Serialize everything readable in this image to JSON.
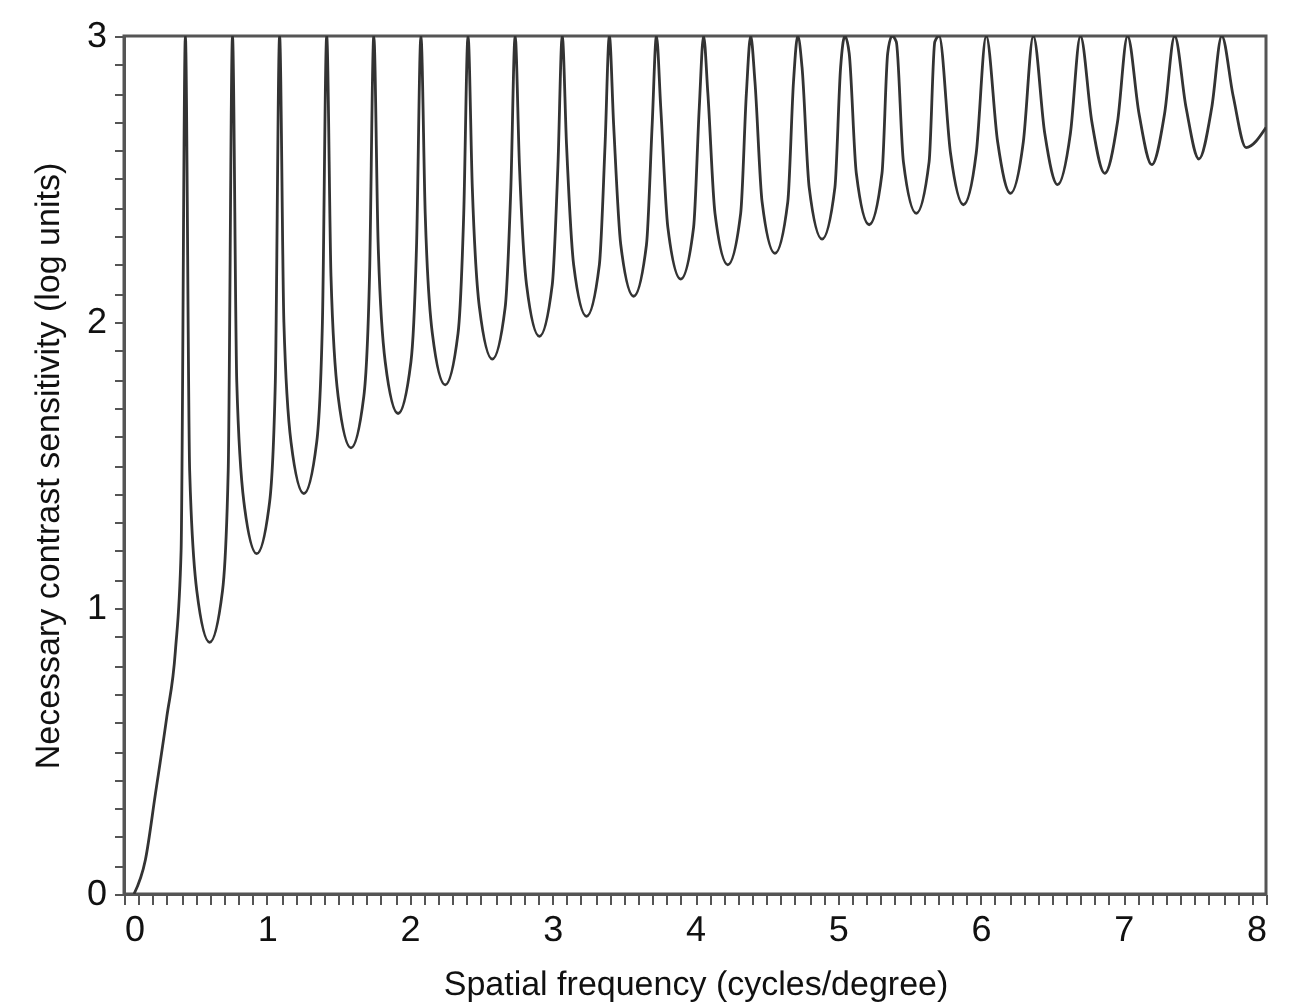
{
  "chart_data": {
    "type": "line",
    "xlabel": "Spatial frequency (cycles/degree)",
    "ylabel": "Necessary contrast sensitivity (log units)",
    "xlim": [
      0,
      8
    ],
    "ylim": [
      0,
      3
    ],
    "xticks": [
      0,
      {
        "value": 0.1,
        "label": null
      },
      {
        "value": 0.2,
        "label": null
      },
      {
        "value": 0.3,
        "label": null
      },
      {
        "value": 0.4,
        "label": null
      },
      {
        "value": 0.5,
        "label": null
      },
      {
        "value": 0.6,
        "label": null
      },
      {
        "value": 0.7,
        "label": null
      },
      {
        "value": 0.8,
        "label": null
      },
      {
        "value": 0.9,
        "label": null
      },
      1,
      {
        "value": 1.1,
        "label": null
      },
      {
        "value": 1.2,
        "label": null
      },
      {
        "value": 1.3,
        "label": null
      },
      {
        "value": 1.4,
        "label": null
      },
      {
        "value": 1.5,
        "label": null
      },
      {
        "value": 1.6,
        "label": null
      },
      {
        "value": 1.7,
        "label": null
      },
      {
        "value": 1.8,
        "label": null
      },
      {
        "value": 1.9,
        "label": null
      },
      2,
      {
        "value": 2.1,
        "label": null
      },
      {
        "value": 2.2,
        "label": null
      },
      {
        "value": 2.3,
        "label": null
      },
      {
        "value": 2.4,
        "label": null
      },
      {
        "value": 2.5,
        "label": null
      },
      {
        "value": 2.6,
        "label": null
      },
      {
        "value": 2.7,
        "label": null
      },
      {
        "value": 2.8,
        "label": null
      },
      {
        "value": 2.9,
        "label": null
      },
      3,
      {
        "value": 3.1,
        "label": null
      },
      {
        "value": 3.2,
        "label": null
      },
      {
        "value": 3.3,
        "label": null
      },
      {
        "value": 3.4,
        "label": null
      },
      {
        "value": 3.5,
        "label": null
      },
      {
        "value": 3.6,
        "label": null
      },
      {
        "value": 3.7,
        "label": null
      },
      {
        "value": 3.8,
        "label": null
      },
      {
        "value": 3.9,
        "label": null
      },
      4,
      {
        "value": 4.1,
        "label": null
      },
      {
        "value": 4.2,
        "label": null
      },
      {
        "value": 4.3,
        "label": null
      },
      {
        "value": 4.4,
        "label": null
      },
      {
        "value": 4.5,
        "label": null
      },
      {
        "value": 4.6,
        "label": null
      },
      {
        "value": 4.7,
        "label": null
      },
      {
        "value": 4.8,
        "label": null
      },
      {
        "value": 4.9,
        "label": null
      },
      5,
      {
        "value": 5.1,
        "label": null
      },
      {
        "value": 5.2,
        "label": null
      },
      {
        "value": 5.3,
        "label": null
      },
      {
        "value": 5.4,
        "label": null
      },
      {
        "value": 5.5,
        "label": null
      },
      {
        "value": 5.6,
        "label": null
      },
      {
        "value": 5.7,
        "label": null
      },
      {
        "value": 5.8,
        "label": null
      },
      {
        "value": 5.9,
        "label": null
      },
      6,
      {
        "value": 6.1,
        "label": null
      },
      {
        "value": 6.2,
        "label": null
      },
      {
        "value": 6.3,
        "label": null
      },
      {
        "value": 6.4,
        "label": null
      },
      {
        "value": 6.5,
        "label": null
      },
      {
        "value": 6.6,
        "label": null
      },
      {
        "value": 6.7,
        "label": null
      },
      {
        "value": 6.8,
        "label": null
      },
      {
        "value": 6.9,
        "label": null
      },
      7,
      {
        "value": 7.1,
        "label": null
      },
      {
        "value": 7.2,
        "label": null
      },
      {
        "value": 7.3,
        "label": null
      },
      {
        "value": 7.4,
        "label": null
      },
      {
        "value": 7.5,
        "label": null
      },
      {
        "value": 7.6,
        "label": null
      },
      {
        "value": 7.7,
        "label": null
      },
      {
        "value": 7.8,
        "label": null
      },
      {
        "value": 7.9,
        "label": null
      },
      8
    ],
    "yticks": [
      0,
      {
        "value": 0.1,
        "label": null
      },
      {
        "value": 0.2,
        "label": null
      },
      {
        "value": 0.3,
        "label": null
      },
      {
        "value": 0.4,
        "label": null
      },
      {
        "value": 0.5,
        "label": null
      },
      {
        "value": 0.6,
        "label": null
      },
      {
        "value": 0.7,
        "label": null
      },
      {
        "value": 0.8,
        "label": null
      },
      {
        "value": 0.9,
        "label": null
      },
      1,
      {
        "value": 1.1,
        "label": null
      },
      {
        "value": 1.2,
        "label": null
      },
      {
        "value": 1.3,
        "label": null
      },
      {
        "value": 1.4,
        "label": null
      },
      {
        "value": 1.5,
        "label": null
      },
      {
        "value": 1.6,
        "label": null
      },
      {
        "value": 1.7,
        "label": null
      },
      {
        "value": 1.8,
        "label": null
      },
      {
        "value": 1.9,
        "label": null
      },
      2,
      {
        "value": 2.1,
        "label": null
      },
      {
        "value": 2.2,
        "label": null
      },
      {
        "value": 2.3,
        "label": null
      },
      {
        "value": 2.4,
        "label": null
      },
      {
        "value": 2.5,
        "label": null
      },
      {
        "value": 2.6,
        "label": null
      },
      {
        "value": 2.7,
        "label": null
      },
      {
        "value": 2.8,
        "label": null
      },
      {
        "value": 2.9,
        "label": null
      },
      3
    ],
    "series": [
      {
        "color": "#333333",
        "x": [
          0.07,
          0.15,
          0.22,
          0.3,
          0.36,
          0.4,
          0.43,
          0.46,
          0.51,
          0.6,
          0.69,
          0.73,
          0.76,
          0.79,
          0.84,
          0.93,
          1.02,
          1.06,
          1.09,
          1.12,
          1.17,
          1.26,
          1.35,
          1.39,
          1.42,
          1.45,
          1.5,
          1.59,
          1.68,
          1.72,
          1.75,
          1.78,
          1.83,
          1.92,
          2.01,
          2.05,
          2.08,
          2.11,
          2.16,
          2.25,
          2.34,
          2.38,
          2.41,
          2.44,
          2.49,
          2.58,
          2.67,
          2.71,
          2.74,
          2.77,
          2.82,
          2.91,
          3.0,
          3.04,
          3.07,
          3.1,
          3.15,
          3.24,
          3.33,
          3.37,
          3.4,
          3.43,
          3.48,
          3.57,
          3.66,
          3.7,
          3.73,
          3.76,
          3.81,
          3.9,
          3.99,
          4.03,
          4.06,
          4.09,
          4.14,
          4.23,
          4.32,
          4.36,
          4.39,
          4.42,
          4.47,
          4.56,
          4.65,
          4.69,
          4.72,
          4.75,
          4.8,
          4.89,
          4.98,
          5.02,
          5.05,
          5.08,
          5.13,
          5.22,
          5.31,
          5.35,
          5.38,
          5.41,
          5.46,
          5.55,
          5.64,
          5.68,
          5.71,
          5.79,
          5.88,
          5.97,
          6.04,
          6.12,
          6.21,
          6.3,
          6.37,
          6.45,
          6.54,
          6.63,
          6.7,
          6.78,
          6.87,
          6.96,
          7.03,
          7.11,
          7.2,
          7.29,
          7.36,
          7.44,
          7.53,
          7.62,
          7.69,
          7.77,
          7.86,
          8.0
        ],
        "values": [
          0,
          0.12,
          0.35,
          0.62,
          0.85,
          1.2,
          3,
          1.48,
          1.06,
          0.88,
          1.06,
          1.48,
          3,
          1.79,
          1.37,
          1.19,
          1.37,
          1.79,
          3,
          2.0,
          1.58,
          1.4,
          1.58,
          2.0,
          3,
          2.16,
          1.74,
          1.56,
          1.74,
          2.16,
          3,
          2.28,
          1.86,
          1.68,
          1.86,
          2.28,
          3,
          2.38,
          1.96,
          1.78,
          1.96,
          2.38,
          3,
          2.47,
          2.05,
          1.87,
          2.05,
          2.47,
          3,
          2.55,
          2.13,
          1.95,
          2.13,
          2.55,
          3,
          2.62,
          2.2,
          2.02,
          2.2,
          2.62,
          3,
          2.69,
          2.27,
          2.09,
          2.27,
          2.69,
          3,
          2.75,
          2.33,
          2.15,
          2.33,
          2.75,
          3,
          2.8,
          2.38,
          2.2,
          2.38,
          2.8,
          3,
          2.84,
          2.42,
          2.24,
          2.42,
          2.84,
          3,
          2.89,
          2.47,
          2.29,
          2.47,
          2.89,
          3,
          2.94,
          2.52,
          2.34,
          2.52,
          2.94,
          3,
          2.98,
          2.56,
          2.38,
          2.56,
          2.98,
          3,
          2.59,
          2.41,
          2.59,
          3,
          2.63,
          2.45,
          2.63,
          3,
          2.66,
          2.48,
          2.66,
          3,
          2.7,
          2.52,
          2.7,
          3,
          2.73,
          2.55,
          2.73,
          3,
          2.75,
          2.57,
          2.75,
          3,
          2.79,
          2.61,
          2.68
        ]
      }
    ]
  }
}
